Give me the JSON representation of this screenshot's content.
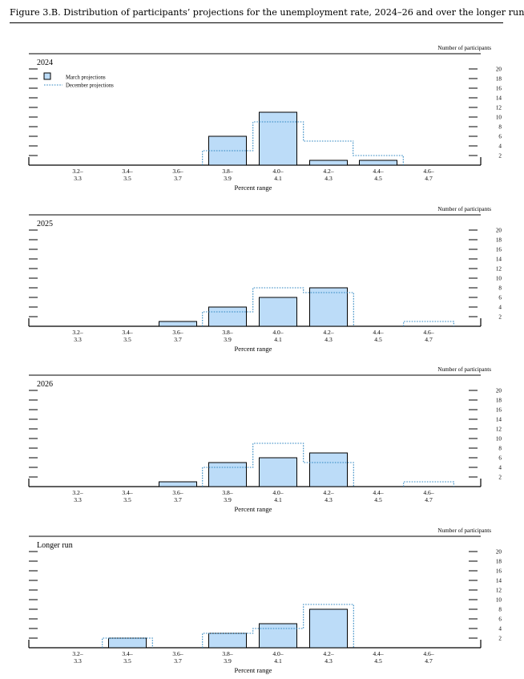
{
  "figure_title": "Figure 3.B. Distribution of participants’ projections for the unemployment rate, 2024–26 and over the longer run",
  "colors": {
    "bar_fill": "#bcdcf8",
    "bar_stroke": "#000000",
    "dec_line": "#2e86c1",
    "axis": "#000000"
  },
  "chart_data": [
    {
      "type": "bar",
      "title": "2024",
      "xlabel": "Percent range",
      "ylabel": "Number of participants",
      "ylim": [
        0,
        20
      ],
      "yticks": [
        "2",
        "4",
        "6",
        "8",
        "10",
        "12",
        "14",
        "16",
        "18",
        "20"
      ],
      "categories": [
        [
          "3.2–",
          "3.3"
        ],
        [
          "3.4–",
          "3.5"
        ],
        [
          "3.6–",
          "3.7"
        ],
        [
          "3.8–",
          "3.9"
        ],
        [
          "4.0–",
          "4.1"
        ],
        [
          "4.2–",
          "4.3"
        ],
        [
          "4.4–",
          "4.5"
        ],
        [
          "4.6–",
          "4.7"
        ]
      ],
      "legend": {
        "placement": "top-left",
        "entries": [
          "March projections",
          "December projections"
        ]
      },
      "series": [
        {
          "name": "March projections",
          "style": "bar",
          "values": [
            0,
            0,
            0,
            6,
            11,
            1,
            1,
            0
          ]
        },
        {
          "name": "December projections",
          "style": "dotted-step",
          "values": [
            0,
            0,
            0,
            3,
            9,
            5,
            2,
            0
          ]
        }
      ]
    },
    {
      "type": "bar",
      "title": "2025",
      "xlabel": "Percent range",
      "ylabel": "Number of participants",
      "ylim": [
        0,
        20
      ],
      "yticks": [
        "2",
        "4",
        "6",
        "8",
        "10",
        "12",
        "14",
        "16",
        "18",
        "20"
      ],
      "categories": [
        [
          "3.2–",
          "3.3"
        ],
        [
          "3.4–",
          "3.5"
        ],
        [
          "3.6–",
          "3.7"
        ],
        [
          "3.8–",
          "3.9"
        ],
        [
          "4.0–",
          "4.1"
        ],
        [
          "4.2–",
          "4.3"
        ],
        [
          "4.4–",
          "4.5"
        ],
        [
          "4.6–",
          "4.7"
        ]
      ],
      "series": [
        {
          "name": "March projections",
          "style": "bar",
          "values": [
            0,
            0,
            1,
            4,
            6,
            8,
            0,
            0
          ]
        },
        {
          "name": "December projections",
          "style": "dotted-step",
          "values": [
            0,
            0,
            0,
            3,
            8,
            7,
            0,
            1
          ]
        }
      ]
    },
    {
      "type": "bar",
      "title": "2026",
      "xlabel": "Percent range",
      "ylabel": "Number of participants",
      "ylim": [
        0,
        20
      ],
      "yticks": [
        "2",
        "4",
        "6",
        "8",
        "10",
        "12",
        "14",
        "16",
        "18",
        "20"
      ],
      "categories": [
        [
          "3.2–",
          "3.3"
        ],
        [
          "3.4–",
          "3.5"
        ],
        [
          "3.6–",
          "3.7"
        ],
        [
          "3.8–",
          "3.9"
        ],
        [
          "4.0–",
          "4.1"
        ],
        [
          "4.2–",
          "4.3"
        ],
        [
          "4.4–",
          "4.5"
        ],
        [
          "4.6–",
          "4.7"
        ]
      ],
      "series": [
        {
          "name": "March projections",
          "style": "bar",
          "values": [
            0,
            0,
            1,
            5,
            6,
            7,
            0,
            0
          ]
        },
        {
          "name": "December projections",
          "style": "dotted-step",
          "values": [
            0,
            0,
            0,
            4,
            9,
            5,
            0,
            1
          ]
        }
      ]
    },
    {
      "type": "bar",
      "title": "Longer run",
      "xlabel": "Percent range",
      "ylabel": "Number of participants",
      "ylim": [
        0,
        20
      ],
      "yticks": [
        "2",
        "4",
        "6",
        "8",
        "10",
        "12",
        "14",
        "16",
        "18",
        "20"
      ],
      "categories": [
        [
          "3.2–",
          "3.3"
        ],
        [
          "3.4–",
          "3.5"
        ],
        [
          "3.6–",
          "3.7"
        ],
        [
          "3.8–",
          "3.9"
        ],
        [
          "4.0–",
          "4.1"
        ],
        [
          "4.2–",
          "4.3"
        ],
        [
          "4.4–",
          "4.5"
        ],
        [
          "4.6–",
          "4.7"
        ]
      ],
      "series": [
        {
          "name": "March projections",
          "style": "bar",
          "values": [
            0,
            2,
            0,
            3,
            5,
            8,
            0,
            0
          ]
        },
        {
          "name": "December projections",
          "style": "dotted-step",
          "values": [
            0,
            2,
            0,
            3,
            4,
            9,
            0,
            0
          ]
        }
      ]
    }
  ]
}
